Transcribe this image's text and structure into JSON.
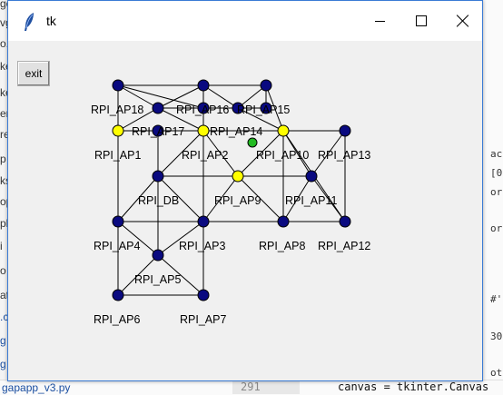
{
  "window": {
    "title": "tk",
    "exit_label": "exit"
  },
  "background": {
    "left_fragments": [
      "ges",
      "vg",
      "o.h",
      "ke",
      "ke",
      "en",
      "re",
      "p",
      "ks",
      "op",
      "pl",
      " i",
      "o",
      "at",
      ".c",
      "g",
      "g"
    ],
    "bottom_file": "gapapp_v3.py",
    "bottom_line_number": "291",
    "bottom_code": "canvas = tkinter.Canvas",
    "right_fragments": [
      "ac",
      "[0",
      "or",
      "or",
      "#'",
      "30",
      "ot"
    ]
  },
  "colors": {
    "node_default": "#0a0a80",
    "node_highlight": "#ffff00",
    "node_current": "#22bb22"
  },
  "graph": {
    "nodes": [
      {
        "id": "t1",
        "label": "",
        "state": "default"
      },
      {
        "id": "t2",
        "label": "",
        "state": "default"
      },
      {
        "id": "t3",
        "label": "",
        "state": "default"
      },
      {
        "id": "ap18",
        "label": "RPI_AP18",
        "state": "default"
      },
      {
        "id": "ap16",
        "label": "RPI_AP16",
        "state": "default"
      },
      {
        "id": "ap14",
        "label": "RPI_AP14",
        "state": "default"
      },
      {
        "id": "ap15",
        "label": "RPI_AP15",
        "state": "default"
      },
      {
        "id": "ap1",
        "label": "RPI_AP1",
        "state": "highlight"
      },
      {
        "id": "ap17",
        "label": "RPI_AP17",
        "state": "default"
      },
      {
        "id": "ap2",
        "label": "RPI_AP2",
        "state": "highlight"
      },
      {
        "id": "me",
        "label": "",
        "state": "current"
      },
      {
        "id": "ap10",
        "label": "RPI_AP10",
        "state": "highlight"
      },
      {
        "id": "ap13",
        "label": "RPI_AP13",
        "state": "default"
      },
      {
        "id": "db",
        "label": "RPI_DB",
        "state": "default"
      },
      {
        "id": "ap9",
        "label": "RPI_AP9",
        "state": "highlight"
      },
      {
        "id": "ap11",
        "label": "RPI_AP11",
        "state": "default"
      },
      {
        "id": "ap4",
        "label": "RPI_AP4",
        "state": "default"
      },
      {
        "id": "ap3",
        "label": "RPI_AP3",
        "state": "default"
      },
      {
        "id": "ap8",
        "label": "RPI_AP8",
        "state": "default"
      },
      {
        "id": "ap12",
        "label": "RPI_AP12",
        "state": "default"
      },
      {
        "id": "ap5",
        "label": "RPI_AP5",
        "state": "default"
      },
      {
        "id": "ap6",
        "label": "RPI_AP6",
        "state": "default"
      },
      {
        "id": "ap7",
        "label": "RPI_AP7",
        "state": "default"
      }
    ],
    "edges": [
      [
        "t1",
        "t2"
      ],
      [
        "t2",
        "t3"
      ],
      [
        "t1",
        "ap1"
      ],
      [
        "t2",
        "ap2"
      ],
      [
        "t3",
        "ap10"
      ],
      [
        "t1",
        "ap18"
      ],
      [
        "ap18",
        "t2"
      ],
      [
        "t1",
        "ap16"
      ],
      [
        "t2",
        "ap16"
      ],
      [
        "t2",
        "ap14"
      ],
      [
        "ap14",
        "t3"
      ],
      [
        "t3",
        "ap15"
      ],
      [
        "ap15",
        "ap16"
      ],
      [
        "ap18",
        "ap15"
      ],
      [
        "ap14",
        "ap10"
      ],
      [
        "ap1",
        "ap2"
      ],
      [
        "ap2",
        "ap10"
      ],
      [
        "ap10",
        "ap13"
      ],
      [
        "ap1",
        "ap4"
      ],
      [
        "ap1",
        "ap17"
      ],
      [
        "ap17",
        "ap2"
      ],
      [
        "ap17",
        "db"
      ],
      [
        "ap18",
        "ap1"
      ],
      [
        "ap18",
        "ap2"
      ],
      [
        "db",
        "ap2"
      ],
      [
        "ap2",
        "ap3"
      ],
      [
        "ap2",
        "ap9"
      ],
      [
        "ap9",
        "ap10"
      ],
      [
        "ap10",
        "ap11"
      ],
      [
        "ap11",
        "ap13"
      ],
      [
        "ap13",
        "ap12"
      ],
      [
        "ap11",
        "ap8"
      ],
      [
        "ap11",
        "ap12"
      ],
      [
        "db",
        "ap9"
      ],
      [
        "ap9",
        "ap11"
      ],
      [
        "db",
        "ap5"
      ],
      [
        "db",
        "ap4"
      ],
      [
        "db",
        "ap3"
      ],
      [
        "ap4",
        "ap3"
      ],
      [
        "ap3",
        "ap8"
      ],
      [
        "ap8",
        "ap12"
      ],
      [
        "ap9",
        "ap8"
      ],
      [
        "ap9",
        "ap3"
      ],
      [
        "ap10",
        "ap8"
      ],
      [
        "ap10",
        "ap12"
      ],
      [
        "ap4",
        "ap5"
      ],
      [
        "ap5",
        "ap3"
      ],
      [
        "ap4",
        "ap6"
      ],
      [
        "ap3",
        "ap7"
      ],
      [
        "ap5",
        "ap6"
      ],
      [
        "ap5",
        "ap7"
      ],
      [
        "ap6",
        "ap7"
      ]
    ]
  }
}
